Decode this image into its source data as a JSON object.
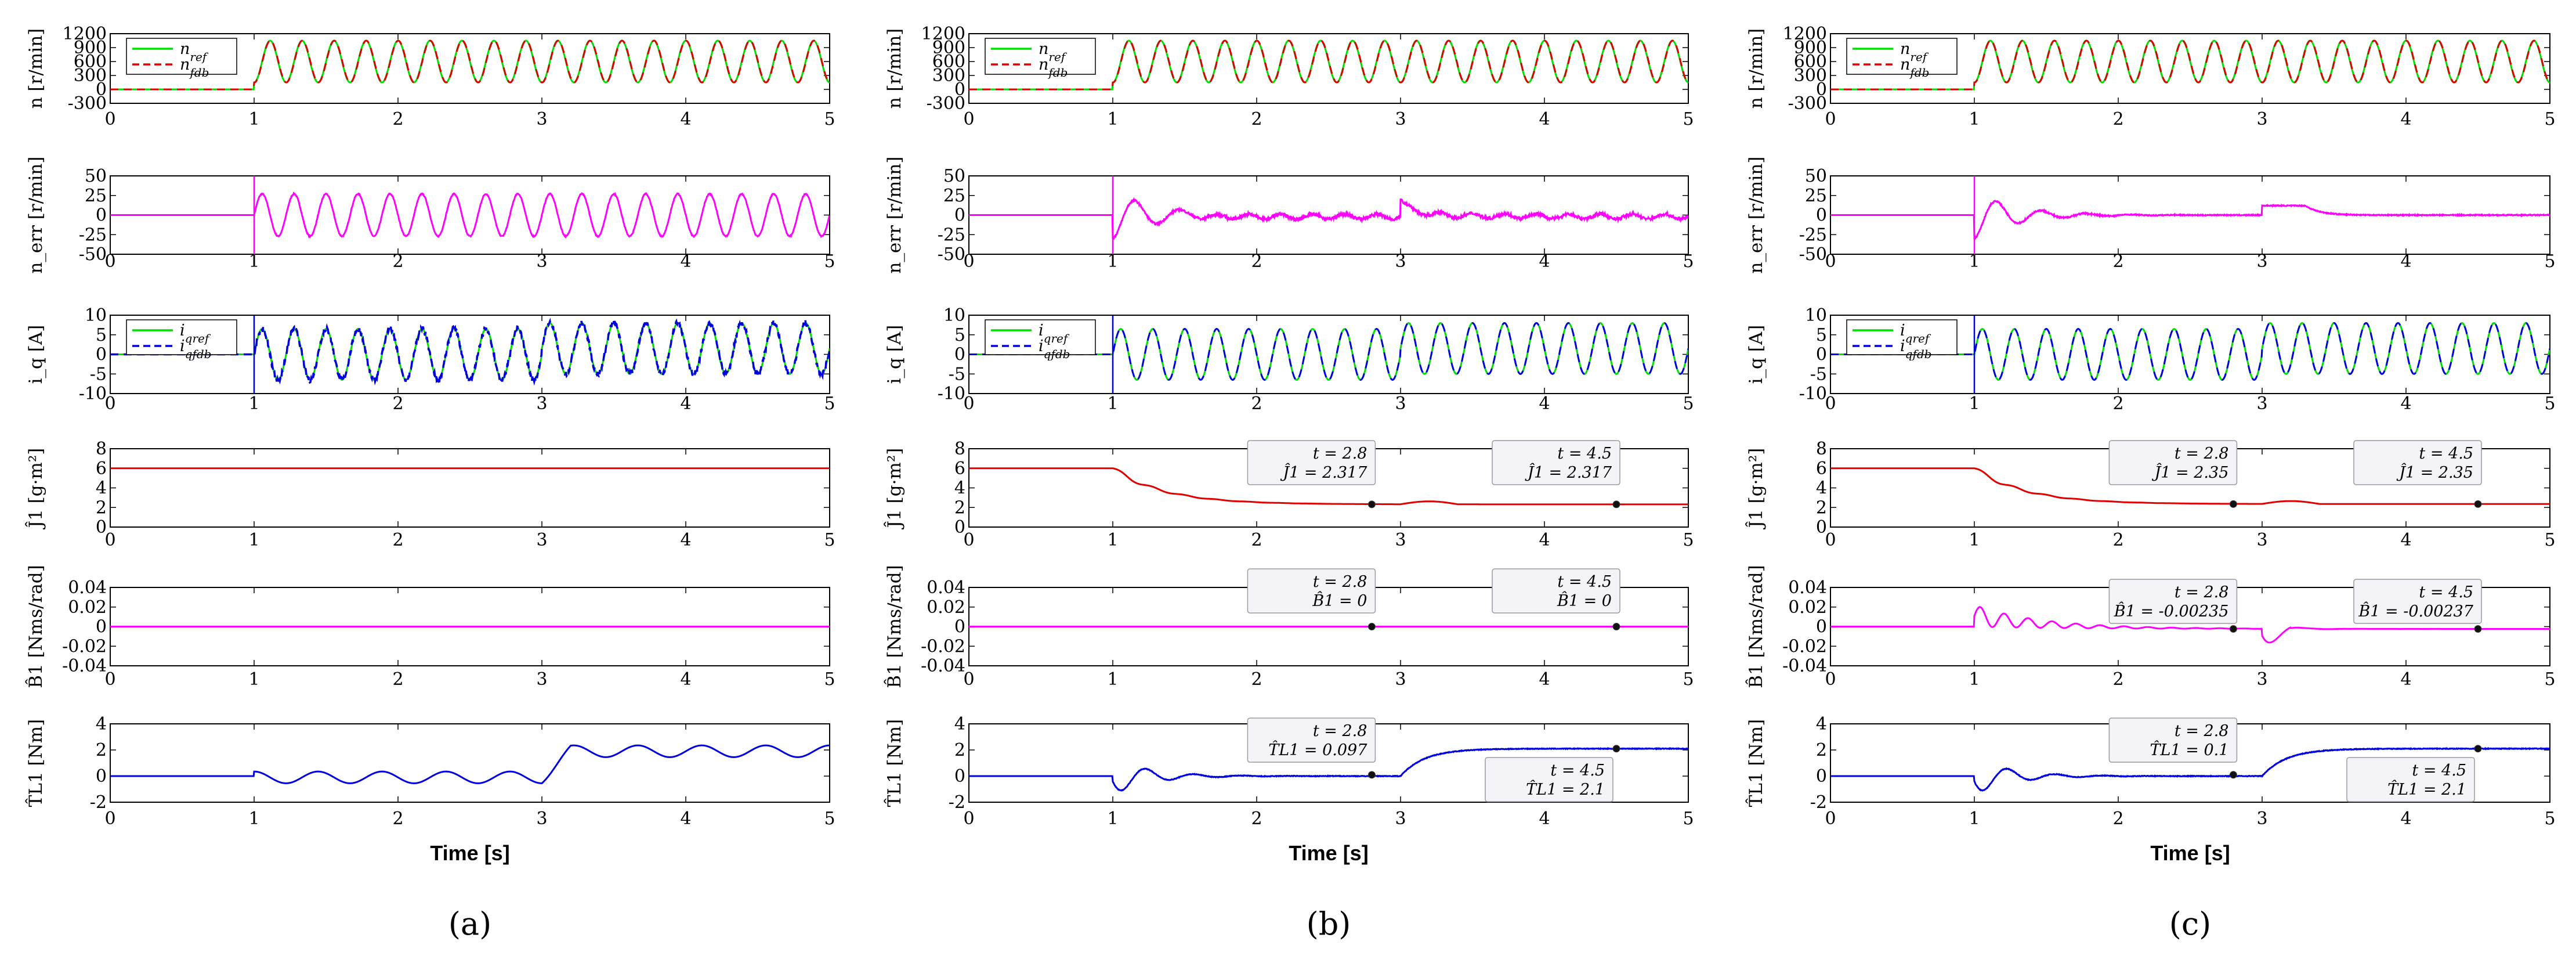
{
  "figure": {
    "xlabel": "Time [s]",
    "xticks": [
      "0",
      "1",
      "2",
      "3",
      "4",
      "5"
    ],
    "captions": [
      "(a)",
      "(b)",
      "(c)"
    ]
  },
  "colors": {
    "ref": "#00e000",
    "fdb_n": "#e00000",
    "err": "#ff00ff",
    "iq": "#0000e0",
    "J": "#e00000",
    "B": "#ff00ff",
    "T": "#0000e0"
  },
  "chart_data": [
    {
      "type": "line",
      "title": "(a)",
      "xlabel": "Time [s]",
      "xlim": [
        0,
        5
      ],
      "rows": [
        {
          "key": "n",
          "ylabel": "n [r/min]",
          "ylim": [
            -300,
            1200
          ],
          "yticks": [
            "1200",
            "900",
            "600",
            "300",
            "0",
            "-300"
          ],
          "legend": [
            "n_ref",
            "n_fdb"
          ],
          "series": [
            {
              "name": "n_ref",
              "kind": "speed_ref"
            },
            {
              "name": "n_fdb",
              "kind": "speed_fdb"
            }
          ],
          "description": "0 until t=1 s, then sinusoid 150-1050 r/min, ~18 cycles over 4 s"
        },
        {
          "key": "err",
          "ylabel": "n_err [r/min]",
          "ylim": [
            -50,
            50
          ],
          "yticks": [
            "50",
            "25",
            "0",
            "-25",
            "-50"
          ],
          "series": [
            {
              "name": "n_err",
              "kind": "err",
              "amplitude_after_1s": 27
            }
          ]
        },
        {
          "key": "iq",
          "ylabel": "i_q [A]",
          "ylim": [
            -10,
            10
          ],
          "yticks": [
            "10",
            "5",
            "0",
            "-5",
            "-10"
          ],
          "legend": [
            "i_qref",
            "i_qfdb"
          ],
          "series": [
            {
              "name": "i_qref",
              "kind": "iq"
            },
            {
              "name": "i_qfdb",
              "kind": "iq_noisy"
            }
          ],
          "description": "amplitude ~6.5 A (1-3 s), offset ~+1.5 A after 3 s"
        },
        {
          "key": "J",
          "ylabel": "Ĵ1 [g·m²]",
          "ylim": [
            0,
            8
          ],
          "yticks": [
            "8",
            "6",
            "4",
            "2",
            "0"
          ],
          "series": [
            {
              "name": "J1_hat",
              "kind": "const",
              "value": 6
            }
          ]
        },
        {
          "key": "B",
          "ylabel": "B̂1 [Nms/rad]",
          "ylim": [
            -0.04,
            0.04
          ],
          "yticks": [
            "0.04",
            "0.02",
            "0",
            "-0.02",
            "-0.04"
          ],
          "series": [
            {
              "name": "B1_hat",
              "kind": "const",
              "value": 0
            }
          ]
        },
        {
          "key": "T",
          "ylabel": "T̂L1 [Nm]",
          "ylim": [
            -2,
            4
          ],
          "yticks": [
            "4",
            "2",
            "0",
            "-2"
          ],
          "series": [
            {
              "name": "TL1_hat",
              "kind": "torque_a"
            }
          ],
          "description": "oscillation amplitude ~1 Nm after 1 s, rising offset to ~2 Nm after 3 s"
        }
      ]
    },
    {
      "type": "line",
      "title": "(b)",
      "xlabel": "Time [s]",
      "xlim": [
        0,
        5
      ],
      "rows": [
        {
          "key": "n",
          "ylabel": "n [r/min]",
          "ylim": [
            -300,
            1200
          ],
          "yticks": [
            "1200",
            "900",
            "600",
            "300",
            "0",
            "-300"
          ],
          "legend": [
            "n_ref",
            "n_fdb"
          ],
          "series": [
            {
              "name": "n_ref",
              "kind": "speed_ref"
            },
            {
              "name": "n_fdb",
              "kind": "speed_fdb"
            }
          ]
        },
        {
          "key": "err",
          "ylabel": "n_err [r/min]",
          "ylim": [
            -50,
            50
          ],
          "yticks": [
            "50",
            "25",
            "0",
            "-25",
            "-50"
          ],
          "series": [
            {
              "name": "n_err",
              "kind": "err_converge",
              "bump_at_3s": 18
            }
          ]
        },
        {
          "key": "iq",
          "ylabel": "i_q [A]",
          "ylim": [
            -10,
            10
          ],
          "yticks": [
            "10",
            "5",
            "0",
            "-5",
            "-10"
          ],
          "legend": [
            "i_qref",
            "i_qfdb"
          ],
          "series": [
            {
              "name": "i_qref",
              "kind": "iq"
            },
            {
              "name": "i_qfdb",
              "kind": "iq"
            }
          ]
        },
        {
          "key": "J",
          "ylabel": "Ĵ1 [g·m²]",
          "ylim": [
            0,
            8
          ],
          "yticks": [
            "8",
            "6",
            "4",
            "2",
            "0"
          ],
          "series": [
            {
              "name": "J1_hat",
              "kind": "J_est",
              "initial": 6,
              "final": 2.317
            }
          ],
          "annotations": [
            {
              "t": 2.8,
              "value": 2.317,
              "line1": "t = 2.8",
              "line2": "Ĵ1 = 2.317"
            },
            {
              "t": 4.5,
              "value": 2.317,
              "line1": "t = 4.5",
              "line2": "Ĵ1 = 2.317"
            }
          ]
        },
        {
          "key": "B",
          "ylabel": "B̂1 [Nms/rad]",
          "ylim": [
            -0.04,
            0.04
          ],
          "yticks": [
            "0.04",
            "0.02",
            "0",
            "-0.02",
            "-0.04"
          ],
          "series": [
            {
              "name": "B1_hat",
              "kind": "const",
              "value": 0
            }
          ],
          "annotations": [
            {
              "t": 2.8,
              "value": 0,
              "line1": "t = 2.8",
              "line2": "B̂1 = 0"
            },
            {
              "t": 4.5,
              "value": 0,
              "line1": "t = 4.5",
              "line2": "B̂1 = 0"
            }
          ]
        },
        {
          "key": "T",
          "ylabel": "T̂L1 [Nm]",
          "ylim": [
            -2,
            4
          ],
          "yticks": [
            "4",
            "2",
            "0",
            "-2"
          ],
          "series": [
            {
              "name": "TL1_hat",
              "kind": "torque_est",
              "final": 2.1
            }
          ],
          "annotations": [
            {
              "t": 2.8,
              "value": 0.097,
              "line1": "t = 2.8",
              "line2": "T̂L1 = 0.097"
            },
            {
              "t": 4.5,
              "value": 2.1,
              "line1": "t = 4.5",
              "line2": "T̂L1 = 2.1"
            }
          ]
        }
      ]
    },
    {
      "type": "line",
      "title": "(c)",
      "xlabel": "Time [s]",
      "xlim": [
        0,
        5
      ],
      "rows": [
        {
          "key": "n",
          "ylabel": "n [r/min]",
          "ylim": [
            -300,
            1200
          ],
          "yticks": [
            "1200",
            "900",
            "600",
            "300",
            "0",
            "-300"
          ],
          "legend": [
            "n_ref",
            "n_fdb"
          ],
          "series": [
            {
              "name": "n_ref",
              "kind": "speed_ref"
            },
            {
              "name": "n_fdb",
              "kind": "speed_fdb"
            }
          ]
        },
        {
          "key": "err",
          "ylabel": "n_err [r/min]",
          "ylim": [
            -50,
            50
          ],
          "yticks": [
            "50",
            "25",
            "0",
            "-25",
            "-50"
          ],
          "series": [
            {
              "name": "n_err",
              "kind": "err_converge_c",
              "bump_at_3s": 12
            }
          ]
        },
        {
          "key": "iq",
          "ylabel": "i_q [A]",
          "ylim": [
            -10,
            10
          ],
          "yticks": [
            "10",
            "5",
            "0",
            "-5",
            "-10"
          ],
          "legend": [
            "i_qref",
            "i_qfdb"
          ],
          "series": [
            {
              "name": "i_qref",
              "kind": "iq"
            },
            {
              "name": "i_qfdb",
              "kind": "iq"
            }
          ]
        },
        {
          "key": "J",
          "ylabel": "Ĵ1 [g·m²]",
          "ylim": [
            0,
            8
          ],
          "yticks": [
            "8",
            "6",
            "4",
            "2",
            "0"
          ],
          "series": [
            {
              "name": "J1_hat",
              "kind": "J_est",
              "initial": 6,
              "final": 2.35
            }
          ],
          "annotations": [
            {
              "t": 2.8,
              "value": 2.35,
              "line1": "t = 2.8",
              "line2": "Ĵ1 = 2.35"
            },
            {
              "t": 4.5,
              "value": 2.35,
              "line1": "t = 4.5",
              "line2": "Ĵ1 = 2.35"
            }
          ]
        },
        {
          "key": "B",
          "ylabel": "B̂1 [Nms/rad]",
          "ylim": [
            -0.04,
            0.04
          ],
          "yticks": [
            "0.04",
            "0.02",
            "0",
            "-0.02",
            "-0.04"
          ],
          "series": [
            {
              "name": "B1_hat",
              "kind": "B_est",
              "final": -0.00237
            }
          ],
          "annotations": [
            {
              "t": 2.8,
              "value": -0.00235,
              "line1": "t = 2.8",
              "line2": "B̂1 = -0.00235"
            },
            {
              "t": 4.5,
              "value": -0.00237,
              "line1": "t = 4.5",
              "line2": "B̂1 = -0.00237"
            }
          ]
        },
        {
          "key": "T",
          "ylabel": "T̂L1 [Nm]",
          "ylim": [
            -2,
            4
          ],
          "yticks": [
            "4",
            "2",
            "0",
            "-2"
          ],
          "series": [
            {
              "name": "TL1_hat",
              "kind": "torque_est",
              "final": 2.1
            }
          ],
          "annotations": [
            {
              "t": 2.8,
              "value": 0.1,
              "line1": "t = 2.8",
              "line2": "T̂L1 = 0.1"
            },
            {
              "t": 4.5,
              "value": 2.1,
              "line1": "t = 4.5",
              "line2": "T̂L1 = 2.1"
            }
          ]
        }
      ]
    }
  ]
}
